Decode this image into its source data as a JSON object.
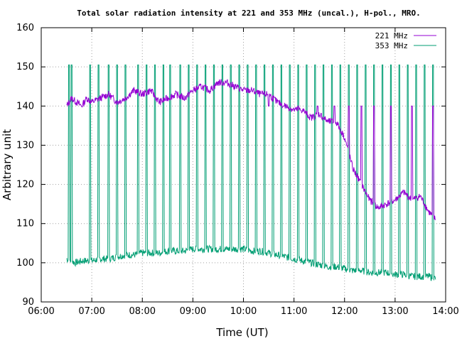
{
  "chart_data": {
    "type": "line",
    "title": "Total solar radiation intensity at 221 and 353 MHz (uncal.), H-pol., MRO.",
    "xlabel": "Time (UT)",
    "ylabel": "Arbitrary unit",
    "x_ticks": [
      "06:00",
      "07:00",
      "08:00",
      "09:00",
      "10:00",
      "11:00",
      "12:00",
      "13:00",
      "14:00"
    ],
    "y_ticks": [
      90,
      100,
      110,
      120,
      130,
      140,
      150,
      160
    ],
    "xlim": [
      "06:00",
      "14:00"
    ],
    "ylim": [
      90,
      160
    ],
    "grid": true,
    "legend_position": "top-right",
    "series": [
      {
        "name": "221 MHz",
        "color": "#9400d3",
        "points": [
          [
            "06:30",
            140
          ],
          [
            "06:36",
            142
          ],
          [
            "06:42",
            141
          ],
          [
            "06:48",
            140
          ],
          [
            "06:54",
            142
          ],
          [
            "07:00",
            141
          ],
          [
            "07:10",
            142
          ],
          [
            "07:20",
            143
          ],
          [
            "07:30",
            141
          ],
          [
            "07:40",
            142
          ],
          [
            "07:50",
            144
          ],
          [
            "08:00",
            143
          ],
          [
            "08:10",
            144
          ],
          [
            "08:20",
            141
          ],
          [
            "08:30",
            142
          ],
          [
            "08:40",
            143
          ],
          [
            "08:50",
            142
          ],
          [
            "09:00",
            144
          ],
          [
            "09:10",
            145
          ],
          [
            "09:20",
            144
          ],
          [
            "09:30",
            146
          ],
          [
            "09:40",
            146
          ],
          [
            "09:50",
            145
          ],
          [
            "10:00",
            144
          ],
          [
            "10:10",
            144
          ],
          [
            "10:20",
            143
          ],
          [
            "10:30",
            143
          ],
          [
            "10:40",
            141
          ],
          [
            "10:50",
            140
          ],
          [
            "11:00",
            139
          ],
          [
            "11:10",
            139
          ],
          [
            "11:20",
            137
          ],
          [
            "11:30",
            138
          ],
          [
            "11:40",
            136
          ],
          [
            "11:50",
            136
          ],
          [
            "12:00",
            132
          ],
          [
            "12:10",
            124
          ],
          [
            "12:20",
            120
          ],
          [
            "12:30",
            116
          ],
          [
            "12:40",
            114
          ],
          [
            "12:50",
            115
          ],
          [
            "13:00",
            116
          ],
          [
            "13:10",
            118
          ],
          [
            "13:20",
            116
          ],
          [
            "13:30",
            117
          ],
          [
            "13:40",
            113
          ],
          [
            "13:48",
            111
          ]
        ]
      },
      {
        "name": "353 MHz",
        "color": "#009e73",
        "points": [
          [
            "06:30",
            101
          ],
          [
            "06:40",
            100
          ],
          [
            "06:50",
            100.5
          ],
          [
            "07:00",
            100.5
          ],
          [
            "07:10",
            101
          ],
          [
            "07:20",
            101
          ],
          [
            "07:30",
            101.5
          ],
          [
            "07:40",
            102
          ],
          [
            "07:50",
            102
          ],
          [
            "08:00",
            102.5
          ],
          [
            "08:10",
            102.5
          ],
          [
            "08:20",
            102.5
          ],
          [
            "08:30",
            103
          ],
          [
            "08:40",
            103
          ],
          [
            "08:50",
            103
          ],
          [
            "09:00",
            103.5
          ],
          [
            "09:10",
            103.5
          ],
          [
            "09:20",
            103.5
          ],
          [
            "09:30",
            103.5
          ],
          [
            "09:40",
            103.5
          ],
          [
            "09:50",
            103.5
          ],
          [
            "10:00",
            103.5
          ],
          [
            "10:10",
            103
          ],
          [
            "10:20",
            103
          ],
          [
            "10:30",
            102.5
          ],
          [
            "10:40",
            102
          ],
          [
            "10:50",
            101.5
          ],
          [
            "11:00",
            101
          ],
          [
            "11:10",
            100.5
          ],
          [
            "11:20",
            100
          ],
          [
            "11:30",
            99.5
          ],
          [
            "11:40",
            99
          ],
          [
            "11:50",
            99
          ],
          [
            "12:00",
            98.5
          ],
          [
            "12:10",
            98
          ],
          [
            "12:20",
            98
          ],
          [
            "12:30",
            97.5
          ],
          [
            "12:40",
            97.5
          ],
          [
            "12:50",
            97.5
          ],
          [
            "13:00",
            97
          ],
          [
            "13:10",
            97
          ],
          [
            "13:20",
            96.5
          ],
          [
            "13:30",
            96.5
          ],
          [
            "13:40",
            96.5
          ],
          [
            "13:48",
            96
          ]
        ]
      }
    ],
    "calibration_spikes": {
      "times_353": [
        "06:33",
        "06:36",
        "06:58",
        "07:08",
        "07:20",
        "07:30",
        "07:40",
        "07:55",
        "08:05",
        "08:15",
        "08:25",
        "08:33",
        "08:45",
        "08:55",
        "09:05",
        "09:15",
        "09:25",
        "09:35",
        "09:45",
        "09:55",
        "10:05",
        "10:15",
        "10:25",
        "10:35",
        "10:45",
        "10:55",
        "11:05",
        "11:15",
        "11:25",
        "11:35",
        "11:45",
        "11:55",
        "12:05",
        "12:15",
        "12:25",
        "12:35",
        "12:45",
        "12:55",
        "13:05",
        "13:15",
        "13:25",
        "13:35",
        "13:45"
      ],
      "peak_353": 150.5,
      "times_221": [
        "10:30",
        "10:48",
        "11:05",
        "11:28",
        "11:48",
        "12:05",
        "12:20",
        "12:35",
        "12:55",
        "13:20",
        "13:45"
      ],
      "peak_221": 140
    }
  }
}
